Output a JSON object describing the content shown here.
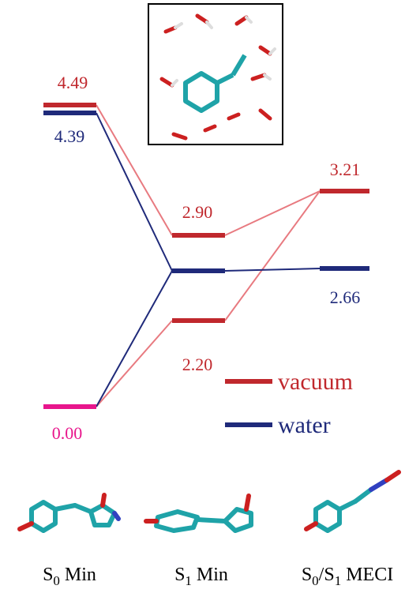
{
  "levels": {
    "s0_vacuum": "4.49",
    "s0_water": "4.39",
    "s0_ground": "0.00",
    "s1_vacuum_upper": "2.90",
    "s1_vacuum_lower": "2.20",
    "meci_vacuum": "3.21",
    "meci_water": "2.66"
  },
  "legend": {
    "vacuum": "vacuum",
    "water": "water"
  },
  "columns": [
    [
      "S",
      "0",
      " Min"
    ],
    [
      "S",
      "1",
      " Min"
    ],
    [
      "S",
      "0",
      "/S",
      "1",
      " MECI"
    ]
  ]
}
